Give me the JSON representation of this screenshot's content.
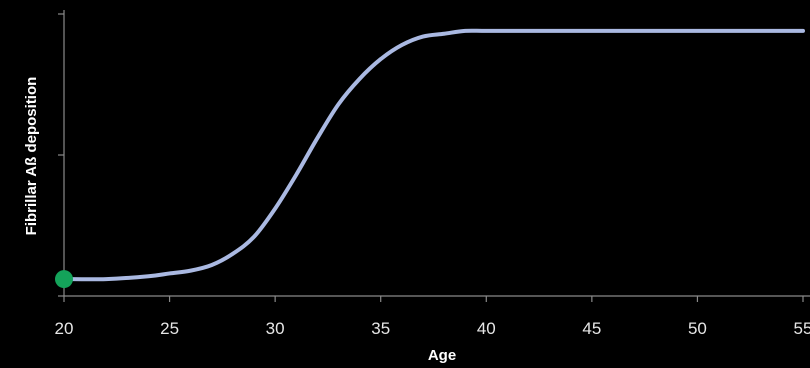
{
  "chart_data": {
    "type": "line",
    "title": "",
    "xlabel": "Age",
    "ylabel": "Fibrillar Aß deposition",
    "xlim": [
      20,
      55
    ],
    "ylim": [
      0,
      1
    ],
    "x_ticks": [
      20,
      25,
      30,
      35,
      40,
      45,
      50,
      55
    ],
    "x_tick_labels": [
      "20",
      "25",
      "30",
      "35",
      "40",
      "45",
      "50",
      "55"
    ],
    "y_ticks": [
      0,
      0.5,
      1
    ],
    "grid": false,
    "legend": "none",
    "series": [
      {
        "x": [
          20,
          22,
          24,
          25,
          26,
          27,
          28,
          29,
          30,
          31,
          32,
          33,
          34,
          35,
          36,
          37,
          38,
          39,
          40,
          42,
          45,
          50,
          55
        ],
        "y": [
          0.06,
          0.06,
          0.07,
          0.08,
          0.09,
          0.11,
          0.15,
          0.21,
          0.31,
          0.43,
          0.56,
          0.68,
          0.77,
          0.84,
          0.89,
          0.92,
          0.93,
          0.94,
          0.94,
          0.94,
          0.94,
          0.94,
          0.94
        ],
        "color": "#aab9e2"
      }
    ],
    "marker": {
      "x": 20,
      "y": 0.06,
      "color": "#14a35a"
    },
    "axis_color": "#8a8a8a"
  }
}
